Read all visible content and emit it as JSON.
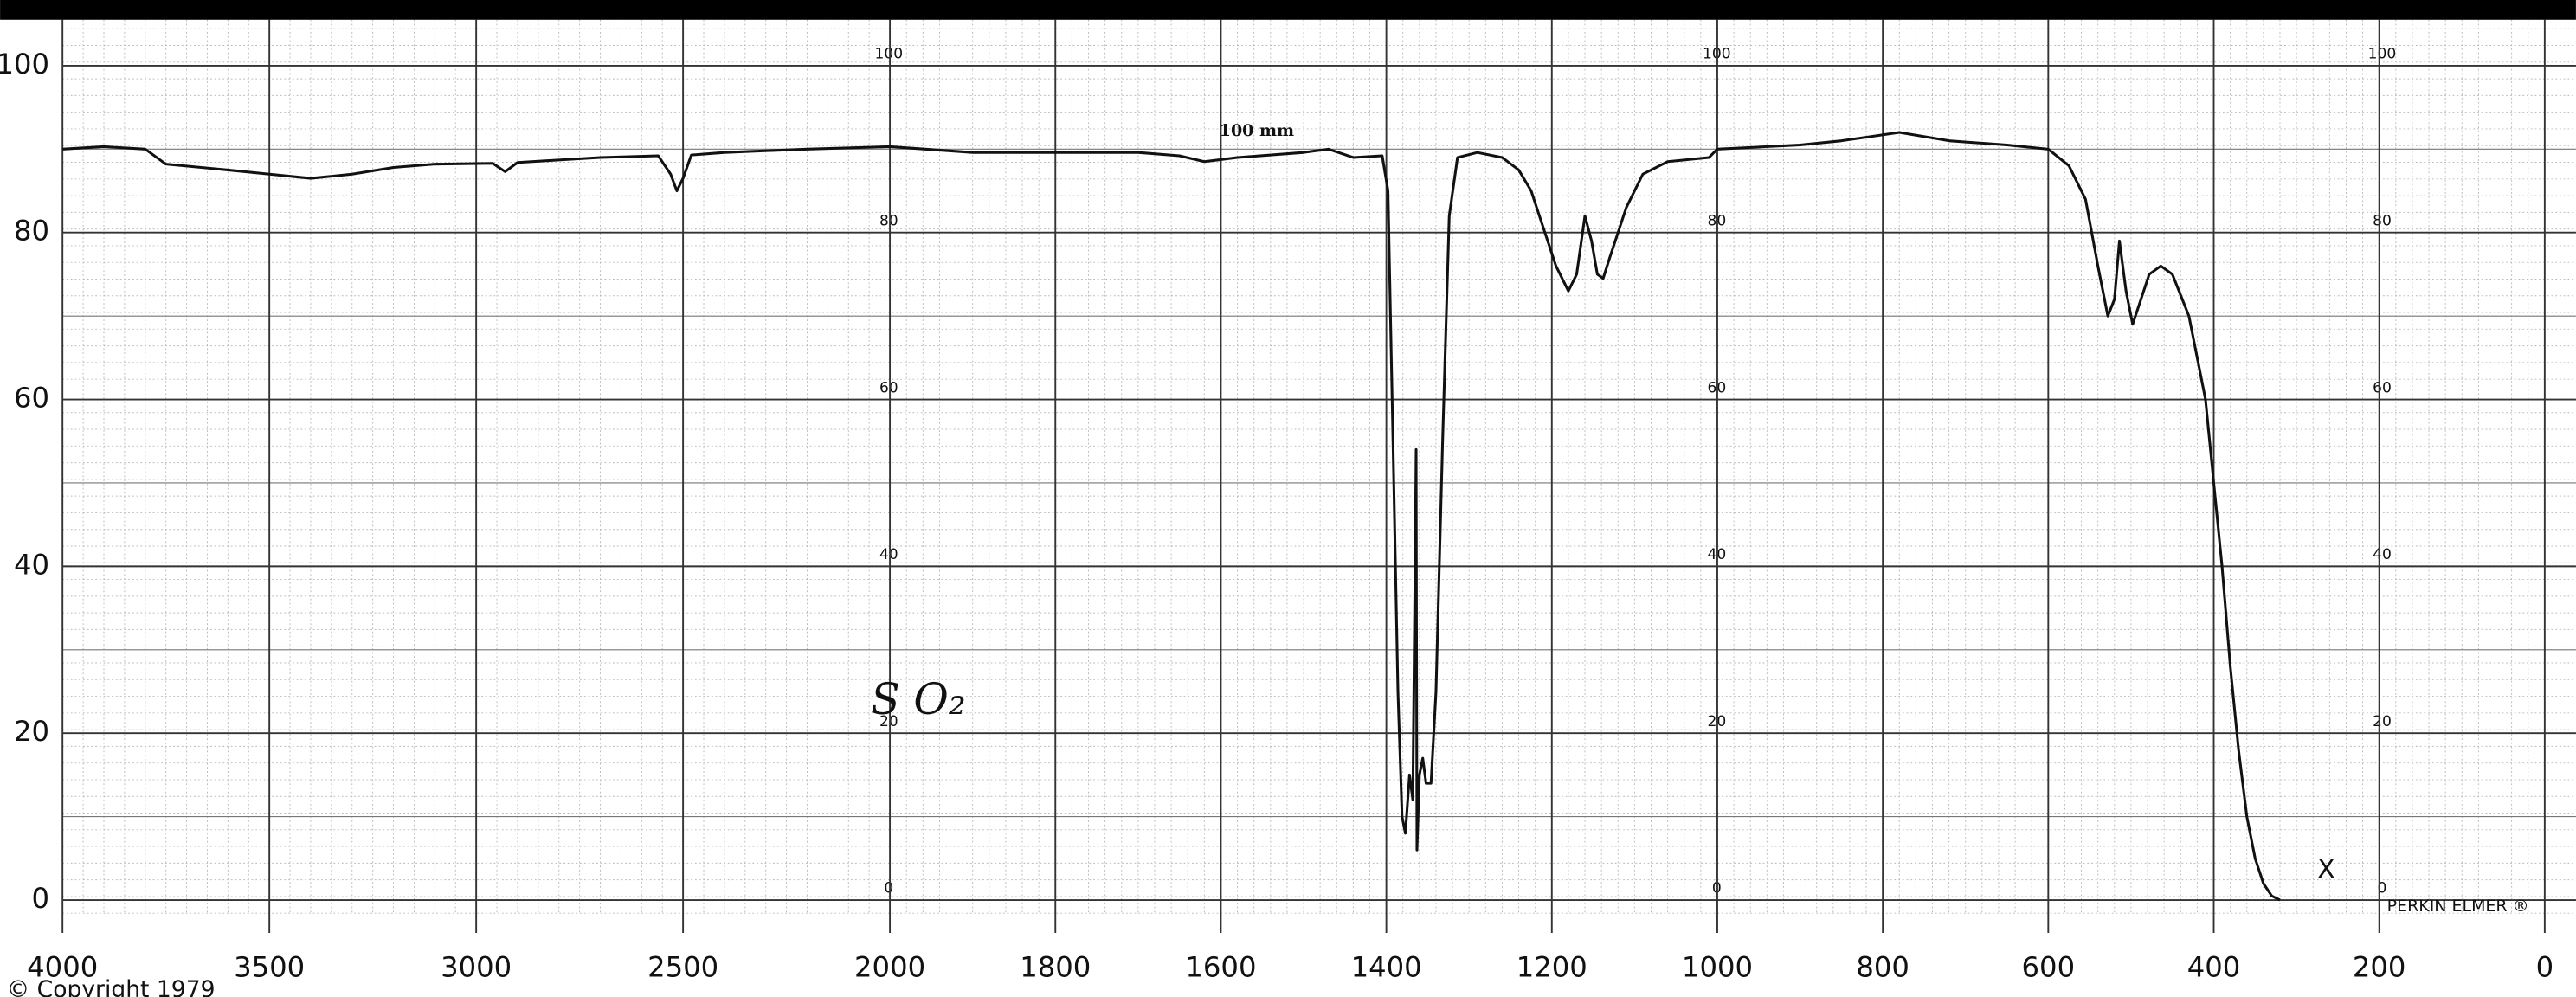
{
  "chart_data": {
    "type": "line",
    "x": [
      4000,
      3900,
      3800,
      3750,
      3600,
      3500,
      3400,
      3300,
      3200,
      3100,
      2960,
      2930,
      2900,
      2700,
      2560,
      2530,
      2515,
      2500,
      2480,
      2400,
      2200,
      2000,
      1900,
      1700,
      1650,
      1620,
      1580,
      1500,
      1470,
      1440,
      1405,
      1398,
      1392,
      1386,
      1381,
      1377,
      1372,
      1368,
      1364,
      1363,
      1360,
      1356,
      1352,
      1346,
      1340,
      1332,
      1324,
      1314,
      1290,
      1260,
      1240,
      1225,
      1210,
      1195,
      1180,
      1170,
      1160,
      1152,
      1145,
      1138,
      1130,
      1110,
      1090,
      1060,
      1010,
      1000,
      900,
      850,
      780,
      720,
      650,
      600,
      575,
      555,
      540,
      528,
      520,
      514,
      506,
      498,
      488,
      478,
      464,
      450,
      430,
      410,
      400,
      390,
      380,
      370,
      360,
      350,
      340,
      330,
      320
    ],
    "values": [
      90,
      90.3,
      90,
      88.2,
      87.5,
      87,
      86.5,
      87,
      87.8,
      88.2,
      88.3,
      87.3,
      88.4,
      89,
      89.2,
      87,
      85,
      86.5,
      89.3,
      89.6,
      90,
      90.3,
      89.6,
      89.6,
      89.2,
      88.5,
      89,
      89.6,
      90,
      89,
      89.2,
      85,
      55,
      25,
      10,
      8,
      15,
      12,
      54,
      6,
      15,
      17,
      14,
      14,
      25,
      55,
      82,
      89,
      89.6,
      89,
      87.5,
      85,
      80.5,
      76,
      73,
      75,
      82,
      79,
      75,
      74.5,
      77,
      83,
      87,
      88.5,
      89,
      90,
      90.5,
      91,
      92,
      91,
      90.5,
      90,
      88,
      84,
      76,
      70,
      72,
      79,
      73,
      69,
      72,
      75,
      76,
      75,
      70,
      60,
      50,
      40,
      28,
      18,
      10,
      5,
      2,
      0.5,
      0
    ],
    "color": "#111111",
    "xlim": [
      4000,
      0
    ],
    "x_scale_break": 2000,
    "xticks": [
      4000,
      3500,
      3000,
      2500,
      2000,
      1800,
      1600,
      1400,
      1200,
      1000,
      800,
      600,
      400,
      200,
      0
    ],
    "ylim": [
      0,
      100
    ],
    "yticks": [
      0,
      20,
      40,
      60,
      80,
      100
    ],
    "grid": true,
    "annotations": {
      "paper_scale": "100 mm",
      "copyright": "© Copyright 1979",
      "maker": "PERKIN ELMER ®",
      "sample": "S O₂",
      "mark": "X"
    }
  }
}
